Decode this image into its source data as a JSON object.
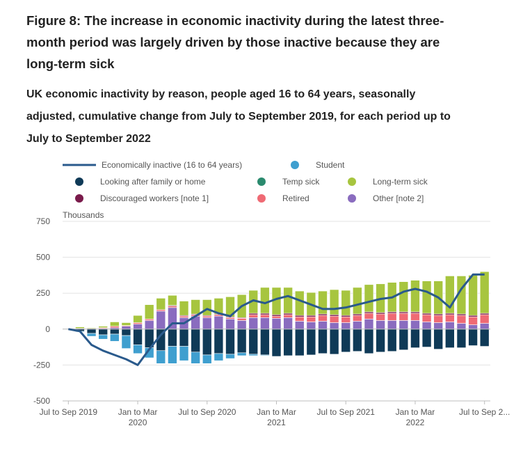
{
  "title": "Figure 8: The increase in economic inactivity during the latest three-month period was largely driven by those inactive because they are long-term sick",
  "subtitle": "UK economic inactivity by reason, people aged 16 to 64 years, seasonally adjusted, cumulative change from July to September 2019, for each period up to July to September 2022",
  "chart_data": {
    "type": "bar",
    "stacked": true,
    "ylabel": "Thousands",
    "ylim": [
      -500,
      750
    ],
    "yticks": [
      -500,
      -250,
      0,
      250,
      500,
      750
    ],
    "x_tick_labels": [
      {
        "index": 0,
        "lines": [
          "Jul to Sep 2019"
        ]
      },
      {
        "index": 6,
        "lines": [
          "Jan to Mar",
          "2020"
        ]
      },
      {
        "index": 12,
        "lines": [
          "Jul to Sep 2020"
        ]
      },
      {
        "index": 18,
        "lines": [
          "Jan to Mar",
          "2021"
        ]
      },
      {
        "index": 24,
        "lines": [
          "Jul to Sep 2021"
        ]
      },
      {
        "index": 30,
        "lines": [
          "Jan to Mar",
          "2022"
        ]
      },
      {
        "index": 36,
        "lines": [
          "Jul to Sep 2..."
        ]
      }
    ],
    "colors": {
      "line": "#2a5a8c",
      "student": "#3f9fcf",
      "family": "#0f3a57",
      "temp_sick": "#2a8a6e",
      "long_term_sick": "#a7c53f",
      "discouraged": "#7a1b4b",
      "retired": "#ef6a74",
      "other": "#8a6cbf"
    },
    "legend": [
      {
        "key": "line",
        "label": "Economically inactive (16 to 64 years)",
        "shape": "line"
      },
      {
        "key": "student",
        "label": "Student",
        "shape": "circle"
      },
      {
        "key": "family",
        "label": "Looking after family or home",
        "shape": "circle"
      },
      {
        "key": "temp_sick",
        "label": "Temp sick",
        "shape": "circle"
      },
      {
        "key": "long_term_sick",
        "label": "Long-term sick",
        "shape": "circle"
      },
      {
        "key": "discouraged",
        "label": "Discouraged workers [note 1]",
        "shape": "circle"
      },
      {
        "key": "retired",
        "label": "Retired",
        "shape": "circle"
      },
      {
        "key": "other",
        "label": "Other [note 2]",
        "shape": "circle"
      }
    ],
    "series": {
      "family": [
        0,
        -15,
        -30,
        -40,
        -35,
        -45,
        -110,
        -130,
        -150,
        -120,
        -120,
        -160,
        -180,
        -170,
        -175,
        -165,
        -175,
        -180,
        -190,
        -185,
        -185,
        -180,
        -170,
        -175,
        -160,
        -155,
        -170,
        -160,
        -155,
        -145,
        -130,
        -125,
        -140,
        -130,
        -130,
        -115,
        -120
      ],
      "temp_sick": [
        0,
        0,
        0,
        0,
        0,
        0,
        0,
        0,
        0,
        0,
        0,
        0,
        0,
        0,
        0,
        0,
        0,
        0,
        0,
        0,
        0,
        0,
        0,
        0,
        0,
        0,
        0,
        0,
        0,
        0,
        0,
        0,
        0,
        0,
        0,
        0,
        0
      ],
      "student": [
        0,
        -5,
        -20,
        -30,
        -50,
        -90,
        -60,
        -70,
        -90,
        -120,
        -100,
        -80,
        -60,
        -50,
        -30,
        -20,
        -10,
        -5,
        0,
        0,
        0,
        0,
        0,
        0,
        0,
        0,
        0,
        0,
        0,
        0,
        0,
        0,
        0,
        0,
        0,
        0,
        0
      ],
      "other": [
        0,
        5,
        5,
        5,
        10,
        20,
        35,
        60,
        125,
        150,
        80,
        90,
        80,
        90,
        70,
        60,
        80,
        80,
        75,
        80,
        55,
        50,
        55,
        45,
        45,
        55,
        70,
        60,
        60,
        60,
        60,
        50,
        45,
        50,
        40,
        30,
        40
      ],
      "retired": [
        0,
        0,
        0,
        5,
        10,
        5,
        10,
        10,
        10,
        10,
        10,
        10,
        10,
        10,
        10,
        15,
        20,
        20,
        15,
        20,
        30,
        35,
        40,
        45,
        40,
        40,
        40,
        45,
        50,
        50,
        50,
        50,
        50,
        50,
        55,
        55,
        60
      ],
      "discouraged": [
        0,
        0,
        0,
        0,
        0,
        0,
        0,
        0,
        0,
        5,
        5,
        5,
        5,
        5,
        5,
        5,
        10,
        10,
        10,
        10,
        10,
        10,
        10,
        10,
        10,
        10,
        10,
        10,
        10,
        10,
        10,
        10,
        10,
        10,
        10,
        10,
        10
      ],
      "long_term_sick": [
        0,
        10,
        5,
        10,
        30,
        20,
        50,
        100,
        80,
        70,
        100,
        100,
        110,
        110,
        140,
        160,
        160,
        180,
        190,
        180,
        170,
        160,
        160,
        175,
        175,
        185,
        190,
        200,
        205,
        210,
        220,
        225,
        230,
        260,
        265,
        280,
        290
      ],
      "line": [
        0,
        -15,
        -110,
        -150,
        -180,
        -210,
        -250,
        -140,
        -40,
        40,
        40,
        90,
        140,
        110,
        90,
        160,
        200,
        180,
        210,
        230,
        200,
        170,
        140,
        140,
        150,
        170,
        190,
        210,
        220,
        260,
        280,
        260,
        220,
        150,
        280,
        380,
        380
      ]
    }
  }
}
